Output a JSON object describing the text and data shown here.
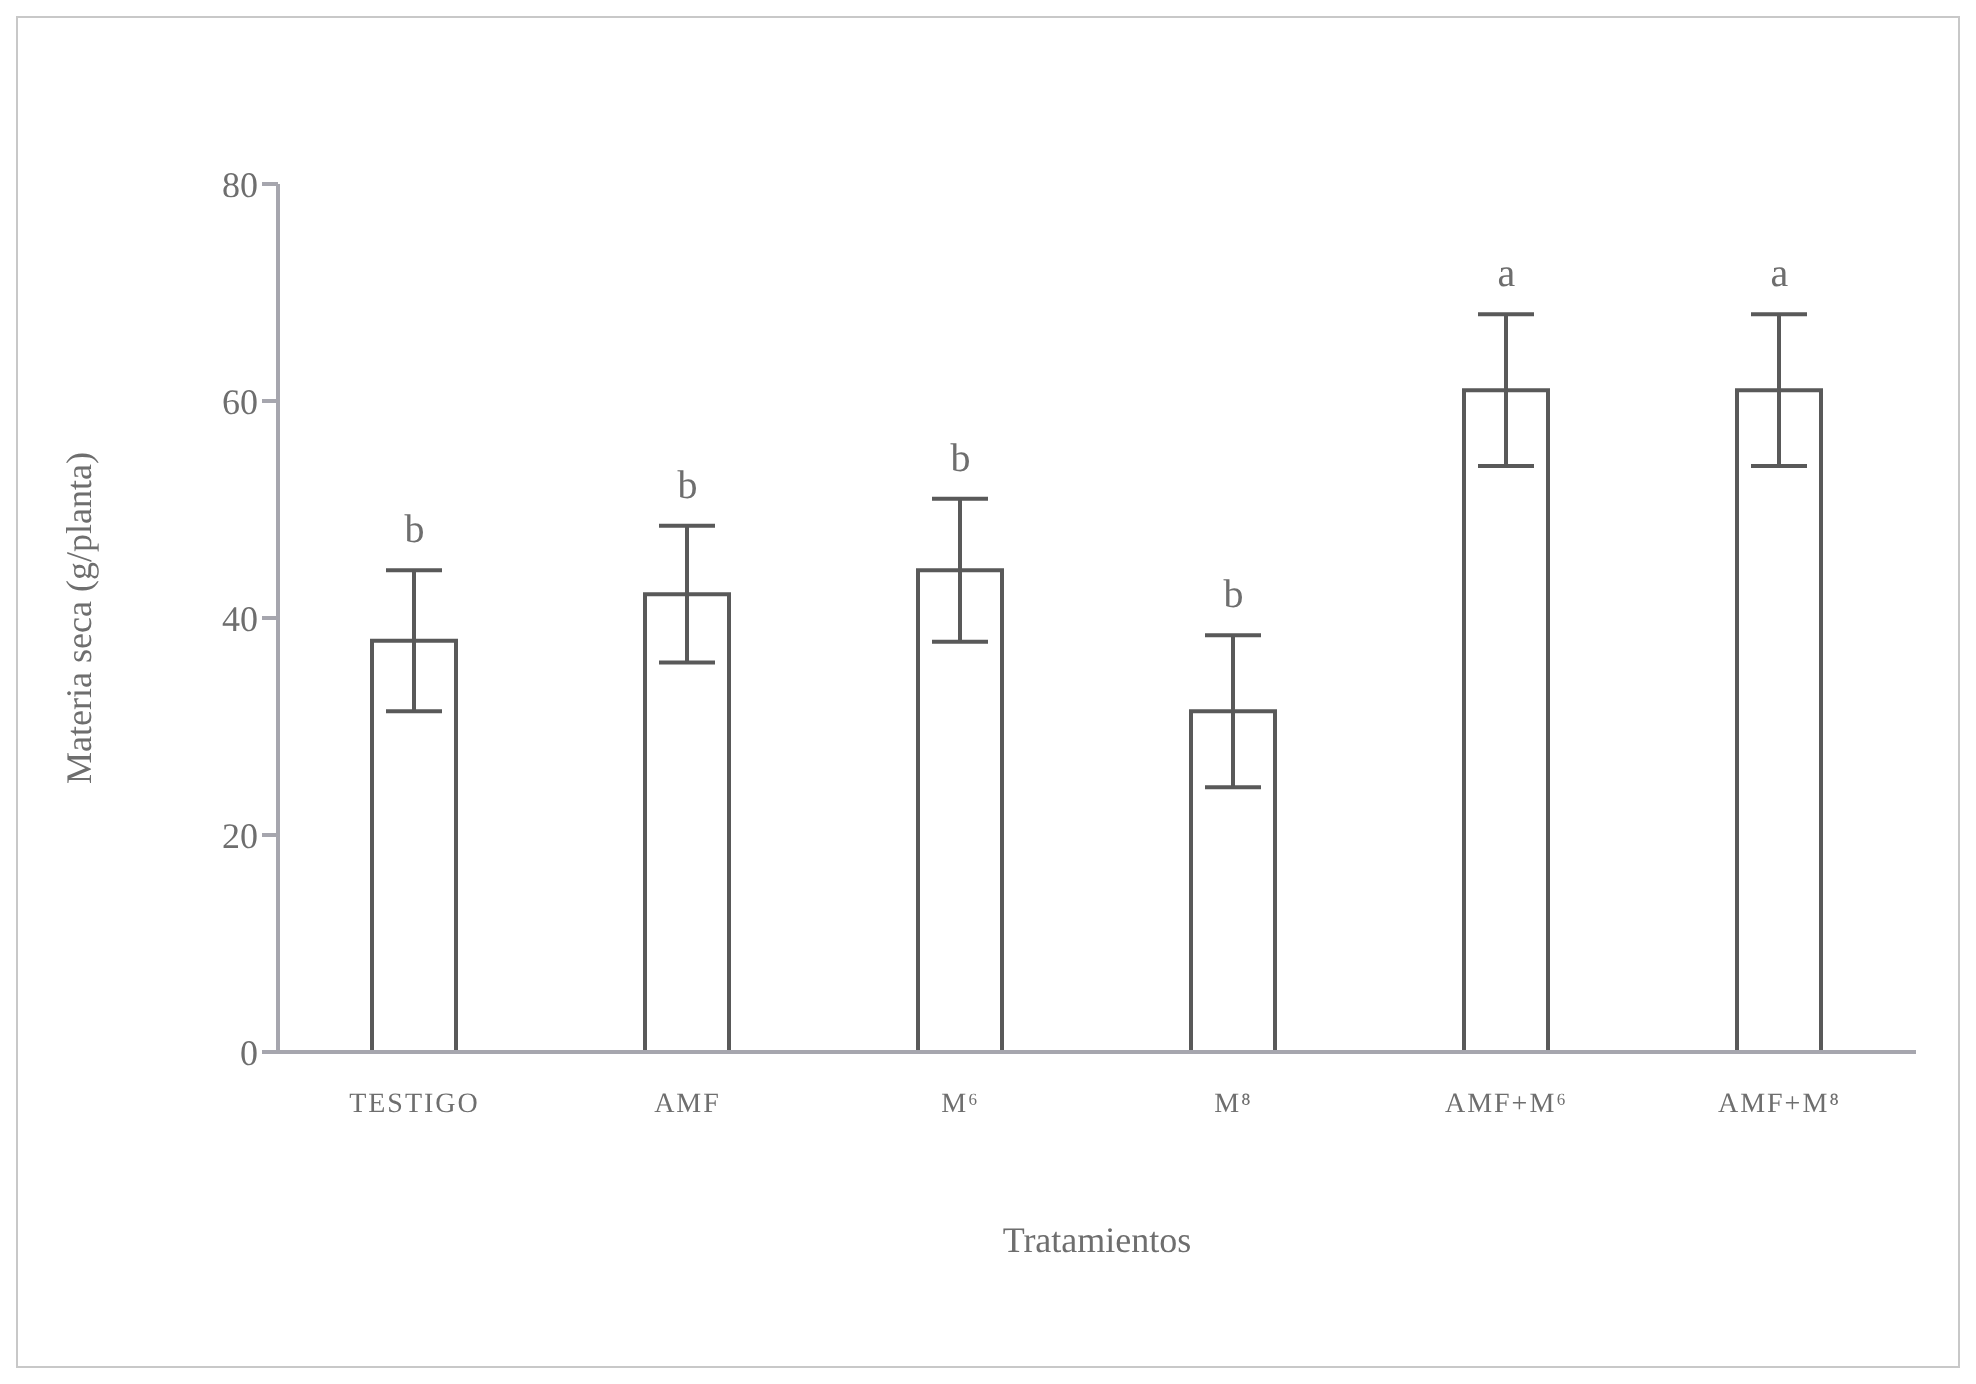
{
  "chart_data": {
    "type": "bar",
    "xlabel": "Tratamientos",
    "ylabel": "Materia seca (g/planta)",
    "categories": [
      "TESTIGO",
      "AMF",
      "M⁶",
      "M⁸",
      "AMF+M⁶",
      "AMF+M⁸"
    ],
    "values": [
      37.9,
      42.2,
      44.4,
      31.4,
      61,
      61
    ],
    "errors": [
      6.5,
      6.3,
      6.6,
      7,
      7,
      7
    ],
    "color": "#595959",
    "ylim": [
      0,
      80
    ],
    "yticks": [
      0,
      20,
      40,
      60,
      80
    ],
    "grid": false,
    "annotations": [
      "b",
      "b",
      "b",
      "b",
      "a",
      "a"
    ]
  }
}
